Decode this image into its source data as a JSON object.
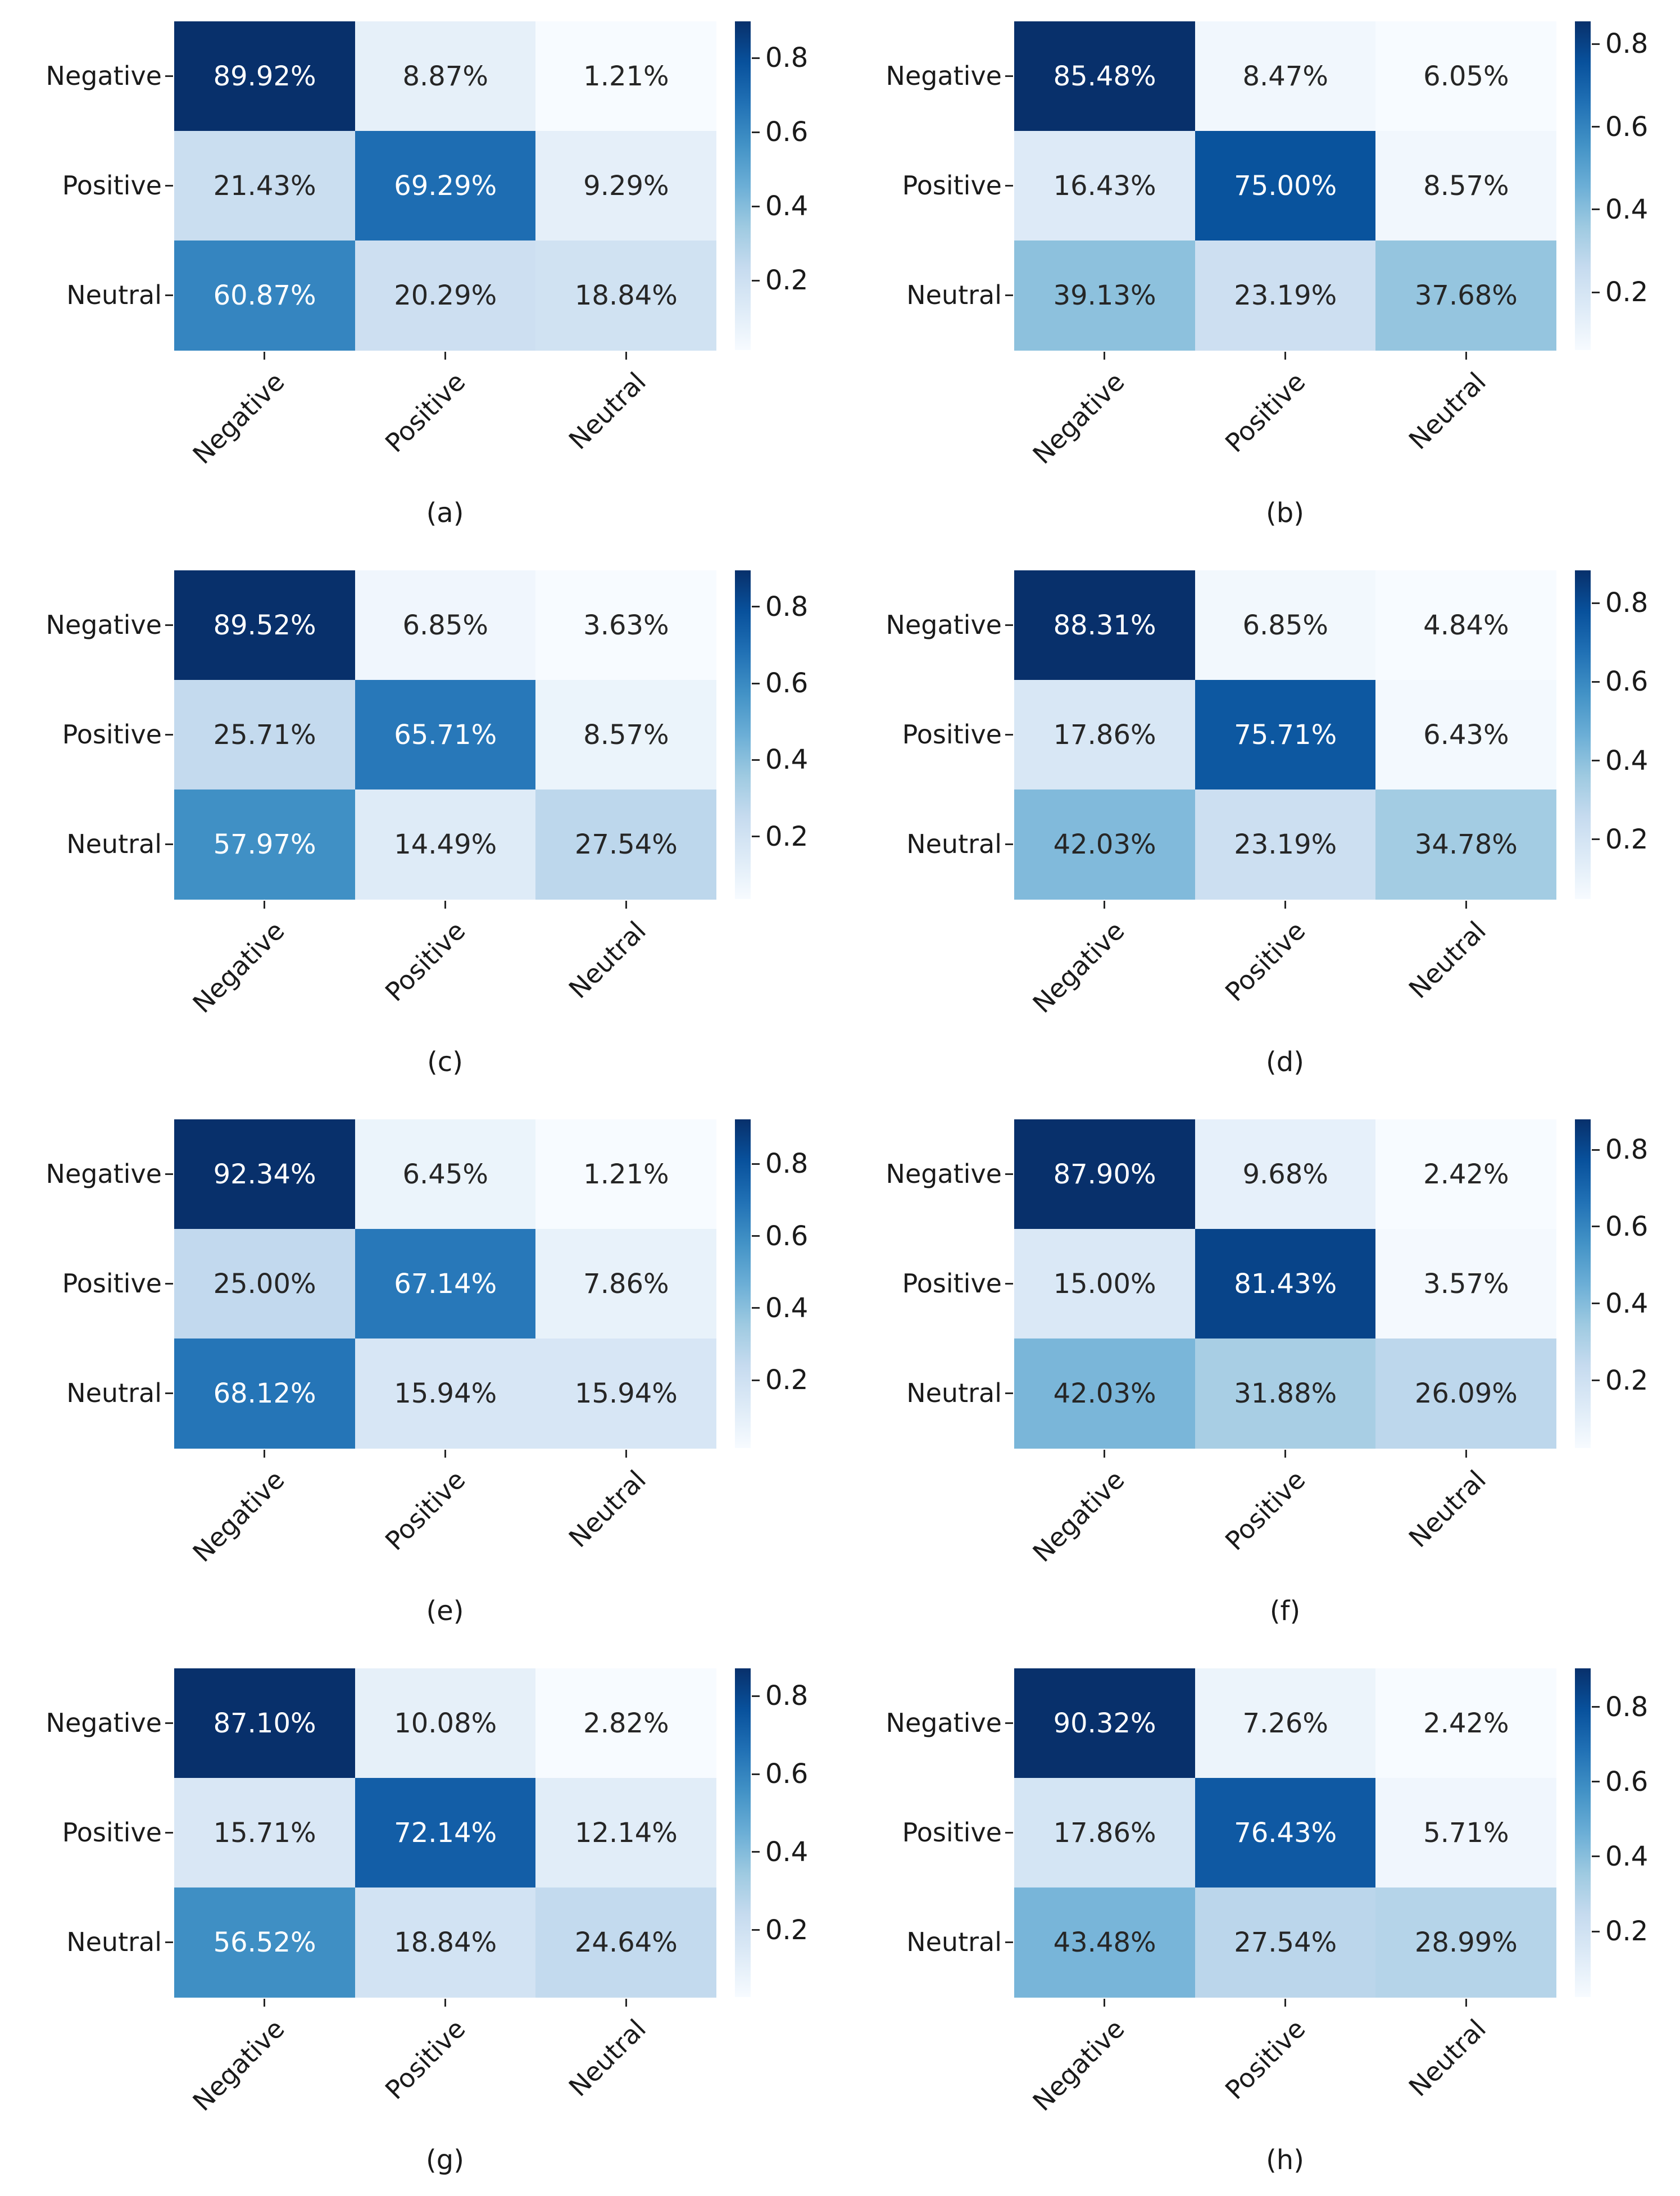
{
  "page": {
    "background": "#ffffff"
  },
  "colormap": {
    "name": "Blues",
    "stops": [
      "#f7fbff",
      "#deebf7",
      "#c6dbef",
      "#9ecae1",
      "#6baed6",
      "#4292c6",
      "#2171b5",
      "#08519c",
      "#08306b"
    ]
  },
  "text_colors": {
    "dark_annotation": "#262626",
    "light_annotation": "#ffffff",
    "axis": "#1a1a1a"
  },
  "chart_data": [
    {
      "type": "heatmap",
      "caption": "(a)",
      "row_labels": [
        "Negative",
        "Positive",
        "Neutral"
      ],
      "col_labels": [
        "Negative",
        "Positive",
        "Neutral"
      ],
      "values_percent": [
        [
          89.92,
          8.87,
          1.21
        ],
        [
          21.43,
          69.29,
          9.29
        ],
        [
          60.87,
          20.29,
          18.84
        ]
      ],
      "cell_labels": [
        [
          "89.92%",
          "8.87%",
          "1.21%"
        ],
        [
          "21.43%",
          "69.29%",
          "9.29%"
        ],
        [
          "60.87%",
          "20.29%",
          "18.84%"
        ]
      ],
      "colorbar_ticks": [
        {
          "label": "0.8",
          "value": 0.8
        },
        {
          "label": "0.6",
          "value": 0.6
        },
        {
          "label": "0.4",
          "value": 0.4
        },
        {
          "label": "0.2",
          "value": 0.2
        }
      ],
      "legend_position": "right",
      "grid": false
    },
    {
      "type": "heatmap",
      "caption": "(b)",
      "row_labels": [
        "Negative",
        "Positive",
        "Neutral"
      ],
      "col_labels": [
        "Negative",
        "Positive",
        "Neutral"
      ],
      "values_percent": [
        [
          85.48,
          8.47,
          6.05
        ],
        [
          16.43,
          75.0,
          8.57
        ],
        [
          39.13,
          23.19,
          37.68
        ]
      ],
      "cell_labels": [
        [
          "85.48%",
          "8.47%",
          "6.05%"
        ],
        [
          "16.43%",
          "75.00%",
          "8.57%"
        ],
        [
          "39.13%",
          "23.19%",
          "37.68%"
        ]
      ],
      "colorbar_ticks": [
        {
          "label": "0.8",
          "value": 0.8
        },
        {
          "label": "0.6",
          "value": 0.6
        },
        {
          "label": "0.4",
          "value": 0.4
        },
        {
          "label": "0.2",
          "value": 0.2
        }
      ],
      "legend_position": "right",
      "grid": false
    },
    {
      "type": "heatmap",
      "caption": "(c)",
      "row_labels": [
        "Negative",
        "Positive",
        "Neutral"
      ],
      "col_labels": [
        "Negative",
        "Positive",
        "Neutral"
      ],
      "values_percent": [
        [
          89.52,
          6.85,
          3.63
        ],
        [
          25.71,
          65.71,
          8.57
        ],
        [
          57.97,
          14.49,
          27.54
        ]
      ],
      "cell_labels": [
        [
          "89.52%",
          "6.85%",
          "3.63%"
        ],
        [
          "25.71%",
          "65.71%",
          "8.57%"
        ],
        [
          "57.97%",
          "14.49%",
          "27.54%"
        ]
      ],
      "colorbar_ticks": [
        {
          "label": "0.8",
          "value": 0.8
        },
        {
          "label": "0.6",
          "value": 0.6
        },
        {
          "label": "0.4",
          "value": 0.4
        },
        {
          "label": "0.2",
          "value": 0.2
        }
      ],
      "legend_position": "right",
      "grid": false
    },
    {
      "type": "heatmap",
      "caption": "(d)",
      "row_labels": [
        "Negative",
        "Positive",
        "Neutral"
      ],
      "col_labels": [
        "Negative",
        "Positive",
        "Neutral"
      ],
      "values_percent": [
        [
          88.31,
          6.85,
          4.84
        ],
        [
          17.86,
          75.71,
          6.43
        ],
        [
          42.03,
          23.19,
          34.78
        ]
      ],
      "cell_labels": [
        [
          "88.31%",
          "6.85%",
          "4.84%"
        ],
        [
          "17.86%",
          "75.71%",
          "6.43%"
        ],
        [
          "42.03%",
          "23.19%",
          "34.78%"
        ]
      ],
      "colorbar_ticks": [
        {
          "label": "0.8",
          "value": 0.8
        },
        {
          "label": "0.6",
          "value": 0.6
        },
        {
          "label": "0.4",
          "value": 0.4
        },
        {
          "label": "0.2",
          "value": 0.2
        }
      ],
      "legend_position": "right",
      "grid": false
    },
    {
      "type": "heatmap",
      "caption": "(e)",
      "row_labels": [
        "Negative",
        "Positive",
        "Neutral"
      ],
      "col_labels": [
        "Negative",
        "Positive",
        "Neutral"
      ],
      "values_percent": [
        [
          92.34,
          6.45,
          1.21
        ],
        [
          25.0,
          67.14,
          7.86
        ],
        [
          68.12,
          15.94,
          15.94
        ]
      ],
      "cell_labels": [
        [
          "92.34%",
          "6.45%",
          "1.21%"
        ],
        [
          "25.00%",
          "67.14%",
          "7.86%"
        ],
        [
          "68.12%",
          "15.94%",
          "15.94%"
        ]
      ],
      "colorbar_ticks": [
        {
          "label": "0.8",
          "value": 0.8
        },
        {
          "label": "0.6",
          "value": 0.6
        },
        {
          "label": "0.4",
          "value": 0.4
        },
        {
          "label": "0.2",
          "value": 0.2
        }
      ],
      "legend_position": "right",
      "grid": false
    },
    {
      "type": "heatmap",
      "caption": "(f)",
      "row_labels": [
        "Negative",
        "Positive",
        "Neutral"
      ],
      "col_labels": [
        "Negative",
        "Positive",
        "Neutral"
      ],
      "values_percent": [
        [
          87.9,
          9.68,
          2.42
        ],
        [
          15.0,
          81.43,
          3.57
        ],
        [
          42.03,
          31.88,
          26.09
        ]
      ],
      "cell_labels": [
        [
          "87.90%",
          "9.68%",
          "2.42%"
        ],
        [
          "15.00%",
          "81.43%",
          "3.57%"
        ],
        [
          "42.03%",
          "31.88%",
          "26.09%"
        ]
      ],
      "colorbar_ticks": [
        {
          "label": "0.8",
          "value": 0.8
        },
        {
          "label": "0.6",
          "value": 0.6
        },
        {
          "label": "0.4",
          "value": 0.4
        },
        {
          "label": "0.2",
          "value": 0.2
        }
      ],
      "legend_position": "right",
      "grid": false
    },
    {
      "type": "heatmap",
      "caption": "(g)",
      "row_labels": [
        "Negative",
        "Positive",
        "Neutral"
      ],
      "col_labels": [
        "Negative",
        "Positive",
        "Neutral"
      ],
      "values_percent": [
        [
          87.1,
          10.08,
          2.82
        ],
        [
          15.71,
          72.14,
          12.14
        ],
        [
          56.52,
          18.84,
          24.64
        ]
      ],
      "cell_labels": [
        [
          "87.10%",
          "10.08%",
          "2.82%"
        ],
        [
          "15.71%",
          "72.14%",
          "12.14%"
        ],
        [
          "56.52%",
          "18.84%",
          "24.64%"
        ]
      ],
      "colorbar_ticks": [
        {
          "label": "0.8",
          "value": 0.8
        },
        {
          "label": "0.6",
          "value": 0.6
        },
        {
          "label": "0.4",
          "value": 0.4
        },
        {
          "label": "0.2",
          "value": 0.2
        }
      ],
      "legend_position": "right",
      "grid": false
    },
    {
      "type": "heatmap",
      "caption": "(h)",
      "row_labels": [
        "Negative",
        "Positive",
        "Neutral"
      ],
      "col_labels": [
        "Negative",
        "Positive",
        "Neutral"
      ],
      "values_percent": [
        [
          90.32,
          7.26,
          2.42
        ],
        [
          17.86,
          76.43,
          5.71
        ],
        [
          43.48,
          27.54,
          28.99
        ]
      ],
      "cell_labels": [
        [
          "90.32%",
          "7.26%",
          "2.42%"
        ],
        [
          "17.86%",
          "76.43%",
          "5.71%"
        ],
        [
          "43.48%",
          "27.54%",
          "28.99%"
        ]
      ],
      "colorbar_ticks": [
        {
          "label": "0.8",
          "value": 0.8
        },
        {
          "label": "0.6",
          "value": 0.6
        },
        {
          "label": "0.4",
          "value": 0.4
        },
        {
          "label": "0.2",
          "value": 0.2
        }
      ],
      "legend_position": "right",
      "grid": false
    }
  ]
}
